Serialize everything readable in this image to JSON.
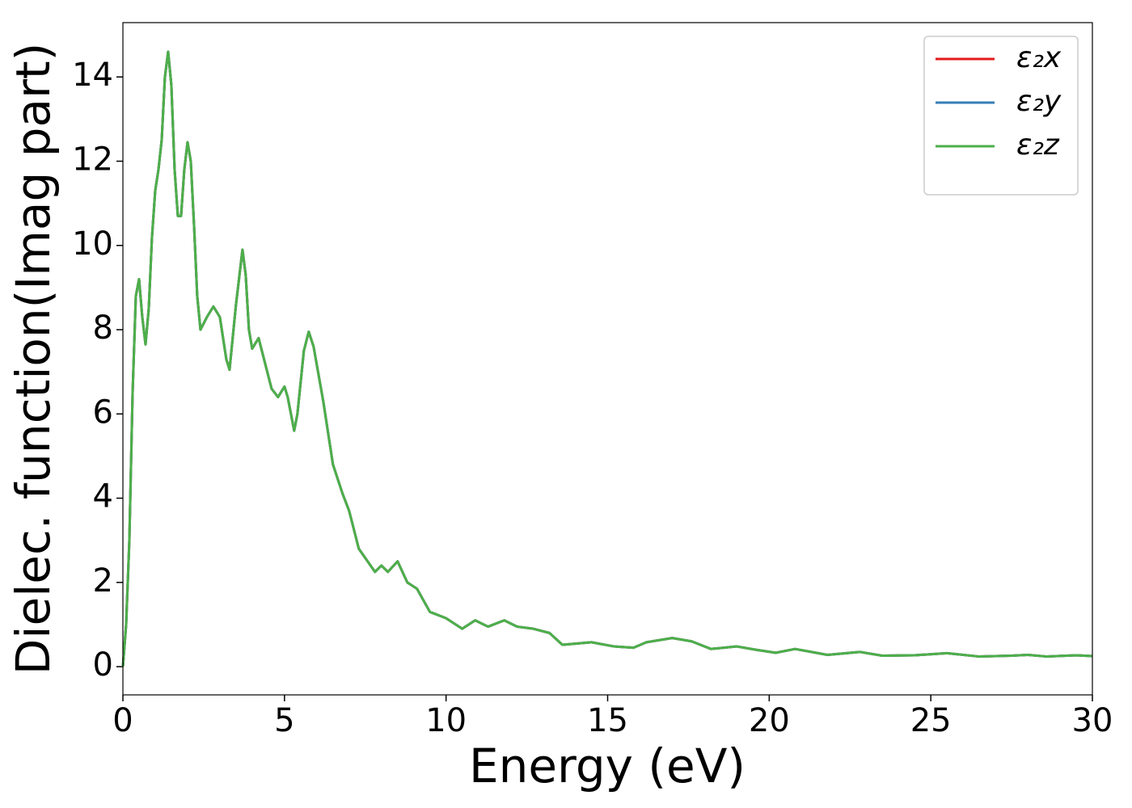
{
  "chart_data": {
    "type": "line",
    "xlabel": "Energy (eV)",
    "ylabel": "Dielec. function(Imag part)",
    "x": [
      0,
      0.1,
      0.2,
      0.3,
      0.4,
      0.5,
      0.6,
      0.7,
      0.8,
      0.9,
      1.0,
      1.1,
      1.2,
      1.3,
      1.4,
      1.5,
      1.6,
      1.7,
      1.8,
      1.9,
      2.0,
      2.1,
      2.2,
      2.3,
      2.4,
      2.6,
      2.8,
      3.0,
      3.2,
      3.3,
      3.5,
      3.7,
      3.8,
      3.9,
      4.0,
      4.2,
      4.4,
      4.6,
      4.8,
      5.0,
      5.1,
      5.3,
      5.4,
      5.6,
      5.75,
      5.9,
      6.2,
      6.5,
      6.8,
      7.0,
      7.3,
      7.8,
      8.0,
      8.2,
      8.5,
      8.8,
      9.1,
      9.5,
      10.0,
      10.5,
      10.9,
      11.3,
      11.8,
      12.2,
      12.7,
      13.2,
      13.6,
      14.5,
      15.2,
      15.8,
      16.2,
      17.0,
      17.6,
      18.2,
      19.0,
      19.6,
      20.2,
      20.8,
      21.8,
      22.8,
      23.5,
      24.5,
      25.5,
      26.5,
      27.5,
      28.0,
      28.6,
      29.5,
      30
    ],
    "series": [
      {
        "name": "ε₂x",
        "color": "#e41a1c",
        "values": [
          0,
          1.0,
          3.0,
          6.5,
          8.8,
          9.2,
          8.3,
          7.65,
          8.5,
          10.2,
          11.3,
          11.8,
          12.5,
          14.0,
          14.6,
          13.8,
          11.8,
          10.7,
          10.7,
          11.8,
          12.45,
          12.0,
          10.5,
          8.8,
          8.0,
          8.3,
          8.55,
          8.3,
          7.3,
          7.05,
          8.6,
          9.9,
          9.3,
          8.0,
          7.55,
          7.8,
          7.2,
          6.6,
          6.4,
          6.65,
          6.4,
          5.6,
          6.0,
          7.5,
          7.95,
          7.6,
          6.3,
          4.8,
          4.1,
          3.7,
          2.8,
          2.25,
          2.4,
          2.25,
          2.5,
          2.0,
          1.85,
          1.3,
          1.15,
          0.9,
          1.1,
          0.95,
          1.1,
          0.95,
          0.9,
          0.8,
          0.52,
          0.58,
          0.48,
          0.45,
          0.58,
          0.68,
          0.6,
          0.42,
          0.48,
          0.4,
          0.33,
          0.42,
          0.28,
          0.35,
          0.26,
          0.27,
          0.32,
          0.24,
          0.26,
          0.28,
          0.24,
          0.27,
          0.25
        ]
      },
      {
        "name": "ε₂y",
        "color": "#377eb8",
        "values": [
          0,
          1.0,
          3.0,
          6.5,
          8.8,
          9.2,
          8.3,
          7.65,
          8.5,
          10.2,
          11.3,
          11.8,
          12.5,
          14.0,
          14.6,
          13.8,
          11.8,
          10.7,
          10.7,
          11.8,
          12.45,
          12.0,
          10.5,
          8.8,
          8.0,
          8.3,
          8.55,
          8.3,
          7.3,
          7.05,
          8.6,
          9.9,
          9.3,
          8.0,
          7.55,
          7.8,
          7.2,
          6.6,
          6.4,
          6.65,
          6.4,
          5.6,
          6.0,
          7.5,
          7.95,
          7.6,
          6.3,
          4.8,
          4.1,
          3.7,
          2.8,
          2.25,
          2.4,
          2.25,
          2.5,
          2.0,
          1.85,
          1.3,
          1.15,
          0.9,
          1.1,
          0.95,
          1.1,
          0.95,
          0.9,
          0.8,
          0.52,
          0.58,
          0.48,
          0.45,
          0.58,
          0.68,
          0.6,
          0.42,
          0.48,
          0.4,
          0.33,
          0.42,
          0.28,
          0.35,
          0.26,
          0.27,
          0.32,
          0.24,
          0.26,
          0.28,
          0.24,
          0.27,
          0.25
        ]
      },
      {
        "name": "ε₂z",
        "color": "#4daf4a",
        "values": [
          0,
          1.0,
          3.0,
          6.5,
          8.8,
          9.2,
          8.3,
          7.65,
          8.5,
          10.2,
          11.3,
          11.8,
          12.5,
          14.0,
          14.6,
          13.8,
          11.8,
          10.7,
          10.7,
          11.8,
          12.45,
          12.0,
          10.5,
          8.8,
          8.0,
          8.3,
          8.55,
          8.3,
          7.3,
          7.05,
          8.6,
          9.9,
          9.3,
          8.0,
          7.55,
          7.8,
          7.2,
          6.6,
          6.4,
          6.65,
          6.4,
          5.6,
          6.0,
          7.5,
          7.95,
          7.6,
          6.3,
          4.8,
          4.1,
          3.7,
          2.8,
          2.25,
          2.4,
          2.25,
          2.5,
          2.0,
          1.85,
          1.3,
          1.15,
          0.9,
          1.1,
          0.95,
          1.1,
          0.95,
          0.9,
          0.8,
          0.52,
          0.58,
          0.48,
          0.45,
          0.58,
          0.68,
          0.6,
          0.42,
          0.48,
          0.4,
          0.33,
          0.42,
          0.28,
          0.35,
          0.26,
          0.27,
          0.32,
          0.24,
          0.26,
          0.28,
          0.24,
          0.27,
          0.25
        ]
      }
    ],
    "xlim": [
      0,
      30
    ],
    "xticks": [
      0,
      5,
      10,
      15,
      20,
      25,
      30
    ],
    "ylim": [
      -0.67,
      15.29
    ],
    "yticks": [
      0,
      2,
      4,
      6,
      8,
      10,
      12,
      14
    ],
    "grid": false,
    "legend": "upper right"
  }
}
